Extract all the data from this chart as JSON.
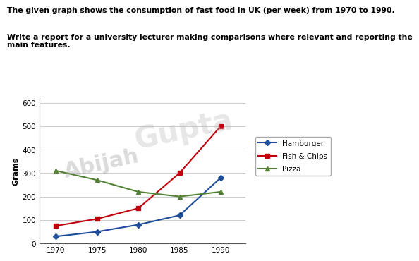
{
  "title_line1": "The given graph shows the consumption of fast food in UK (per week) from 1970 to 1990.",
  "title_line2": "Write a report for a university lecturer making comparisons where relevant and reporting the\nmain features.",
  "years": [
    1970,
    1975,
    1980,
    1985,
    1990
  ],
  "hamburger": [
    30,
    50,
    80,
    120,
    280
  ],
  "fish_chips": [
    75,
    105,
    150,
    300,
    500
  ],
  "pizza": [
    310,
    270,
    220,
    200,
    220
  ],
  "hamburger_color": "#1F4E9A",
  "fish_chips_color": "#C0000C",
  "pizza_color": "#538135",
  "ylabel": "Grams",
  "ylim": [
    0,
    620
  ],
  "yticks": [
    0,
    100,
    200,
    300,
    400,
    500,
    600
  ],
  "xlim": [
    1968,
    1993
  ],
  "xticks": [
    1970,
    1975,
    1980,
    1985,
    1990
  ],
  "legend_labels": [
    "Hamburger",
    "Fish & Chips",
    "Pizza"
  ],
  "background_color": "#ffffff",
  "watermark_text1": "Abijah",
  "watermark_text2": "Gupta"
}
